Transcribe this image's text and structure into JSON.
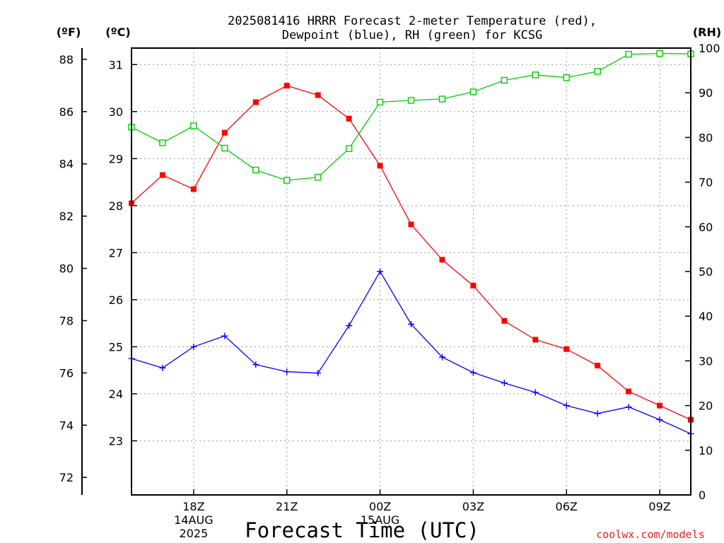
{
  "chart_data": {
    "type": "line",
    "title_line1": "2025081416 HRRR Forecast 2-meter Temperature (red),",
    "title_line2": "Dewpoint (blue), RH (green) for KCSG",
    "unit_left_outer": "(ºF)",
    "unit_left_inner": "(ºC)",
    "unit_right": "(RH)",
    "xlabel": "Forecast Time (UTC)",
    "credit": "coolwx.com/models",
    "x_hours": [
      0,
      1,
      2,
      3,
      4,
      5,
      6,
      7,
      8,
      9,
      10,
      11,
      12,
      13,
      14,
      15,
      16,
      17,
      18
    ],
    "x_range": [
      0,
      18
    ],
    "x_ticks": [
      {
        "hour": 2,
        "label": "18Z",
        "sub1": "14AUG",
        "sub2": "2025"
      },
      {
        "hour": 5,
        "label": "21Z",
        "sub1": "",
        "sub2": ""
      },
      {
        "hour": 8,
        "label": "00Z",
        "sub1": "15AUG",
        "sub2": ""
      },
      {
        "hour": 11,
        "label": "03Z",
        "sub1": "",
        "sub2": ""
      },
      {
        "hour": 14,
        "label": "06Z",
        "sub1": "",
        "sub2": ""
      },
      {
        "hour": 17,
        "label": "09Z",
        "sub1": "",
        "sub2": ""
      }
    ],
    "celsius_range": [
      21.85,
      31.35
    ],
    "celsius_ticks": [
      "23",
      "24",
      "25",
      "26",
      "27",
      "28",
      "29",
      "30",
      "31"
    ],
    "fahrenheit_ticks": [
      "72",
      "74",
      "76",
      "78",
      "80",
      "82",
      "84",
      "86",
      "88"
    ],
    "rh_range": [
      0,
      100
    ],
    "rh_ticks": [
      "0",
      "10",
      "20",
      "30",
      "40",
      "50",
      "60",
      "70",
      "80",
      "90",
      "100"
    ],
    "grid": true,
    "series": [
      {
        "name": "Temperature (red)",
        "color": "#ff0000",
        "axis": "celsius",
        "marker": "filled-square",
        "values": [
          28.05,
          28.65,
          28.35,
          29.55,
          30.2,
          30.55,
          30.35,
          29.85,
          28.85,
          27.6,
          26.85,
          26.3,
          25.55,
          25.15,
          24.95,
          24.6,
          24.05,
          23.75,
          23.45
        ]
      },
      {
        "name": "Dewpoint (blue)",
        "color": "#0000ff",
        "axis": "celsius",
        "marker": "plus",
        "values": [
          24.75,
          24.55,
          25.0,
          25.23,
          24.62,
          24.47,
          24.44,
          25.45,
          26.6,
          25.48,
          24.78,
          24.45,
          24.23,
          24.03,
          23.75,
          23.58,
          23.72,
          23.45,
          23.15
        ]
      },
      {
        "name": "RH (green)",
        "color": "#00cc00",
        "axis": "rh",
        "marker": "open-square",
        "values": [
          82.3,
          78.8,
          82.6,
          77.6,
          72.7,
          70.4,
          71.1,
          77.5,
          87.9,
          88.3,
          88.6,
          90.2,
          92.8,
          94.0,
          93.4,
          94.8,
          98.6,
          98.8,
          98.7
        ]
      }
    ]
  }
}
